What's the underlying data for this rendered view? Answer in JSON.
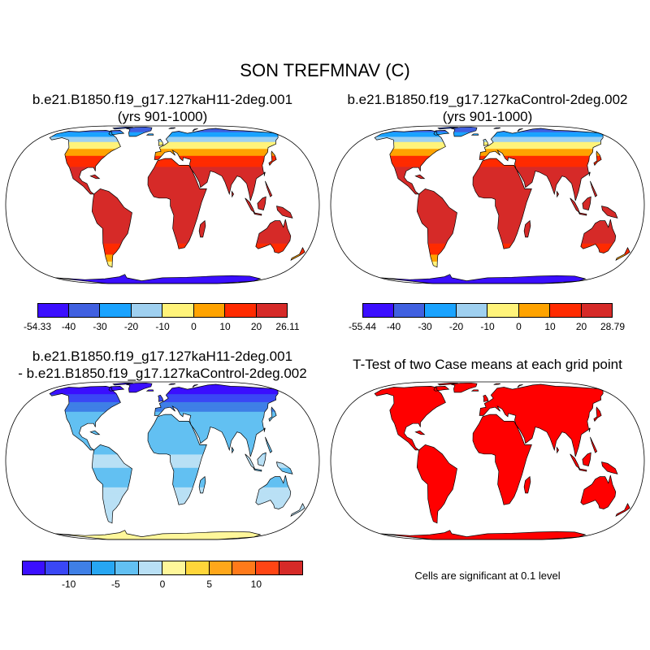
{
  "title": "SON TREFMNAV (C)",
  "colors": {
    "ocean": "#ffffff",
    "outline": "#000000",
    "palette_abs": [
      "#3b0fff",
      "#4060e0",
      "#1aa3ff",
      "#9fd0f0",
      "#fff37a",
      "#ffa300",
      "#ff2b00",
      "#d62a28"
    ],
    "palette_diff": [
      "#3b0fff",
      "#3a47f5",
      "#3f7fe6",
      "#27a6f2",
      "#62c0f2",
      "#b9e0f5",
      "#fff79a",
      "#ffd63a",
      "#ffa71a",
      "#ff7a1a",
      "#ff4514",
      "#d62a28"
    ],
    "significant": "#ff0000"
  },
  "panels": [
    {
      "id": "case1",
      "title_line1": "b.e21.B1850.f19_g17.127kaH11-2deg.001",
      "title_line2": "(yrs 901-1000)",
      "colorbar": {
        "labels": [
          "-54.33",
          "-40",
          "-30",
          "-20",
          "-10",
          "0",
          "10",
          "20",
          "26.11"
        ]
      }
    },
    {
      "id": "case2",
      "title_line1": "b.e21.B1850.f19_g17.127kaControl-2deg.002",
      "title_line2": "(yrs 901-1000)",
      "colorbar": {
        "labels": [
          "-55.44",
          "-40",
          "-30",
          "-20",
          "-10",
          "0",
          "10",
          "20",
          "28.79"
        ]
      }
    },
    {
      "id": "diff",
      "title_line1": "b.e21.B1850.f19_g17.127kaH11-2deg.001",
      "title_line2": "- b.e21.B1850.f19_g17.127kaControl-2deg.002",
      "colorbar": {
        "labels": [
          "-10",
          "-5",
          "0",
          "5",
          "10"
        ]
      }
    },
    {
      "id": "ttest",
      "title_line1": "T-Test of two Case means at each grid point",
      "note": "Cells are significant at 0.1 level"
    }
  ]
}
